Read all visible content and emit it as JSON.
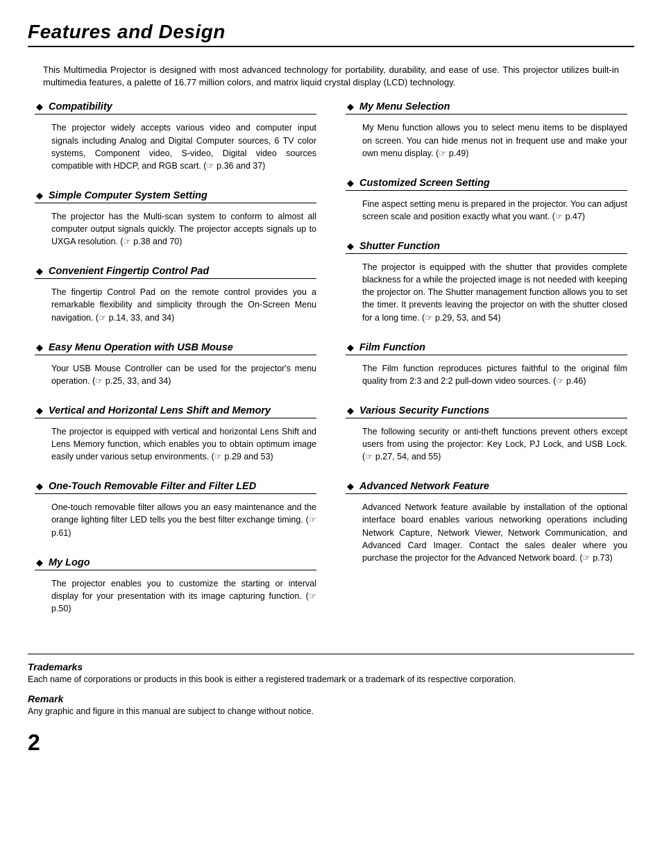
{
  "page": {
    "title": "Features and Design",
    "intro": "This Multimedia Projector is designed with most advanced technology for portability, durability, and ease of use. This projector utilizes built-in multimedia features, a palette of 16.77 million colors, and matrix liquid crystal display (LCD) technology.",
    "page_number": "2"
  },
  "left_features": [
    {
      "title": "Compatibility",
      "body": "The projector widely accepts various video and computer input signals including Analog and Digital Computer sources, 6 TV color systems, Component video, S-video, Digital video sources compatible with HDCP, and RGB scart. (☞ p.36 and 37)"
    },
    {
      "title": "Simple Computer System Setting",
      "body": "The projector has the Multi-scan system to conform to almost all computer output signals quickly. The projector accepts signals up to UXGA resolution. (☞ p.38 and 70)"
    },
    {
      "title": "Convenient Fingertip Control Pad",
      "body": "The fingertip Control Pad on the remote control provides you a remarkable flexibility and simplicity through the On-Screen Menu navigation. (☞ p.14, 33, and 34)"
    },
    {
      "title": "Easy Menu Operation with USB Mouse",
      "body": "Your USB Mouse Controller can be used for the projector's menu operation. (☞ p.25, 33, and 34)"
    },
    {
      "title": "Vertical and Horizontal Lens Shift and Memory",
      "body": "The projector is equipped with vertical and horizontal Lens Shift and Lens Memory function, which enables you to obtain optimum image easily under various setup environments. (☞ p.29 and 53)"
    },
    {
      "title": "One-Touch Removable Filter and Filter LED",
      "body": "One-touch removable filter allows you an easy maintenance and the orange lighting filter LED tells you the best filter exchange timing. (☞ p.61)"
    },
    {
      "title": "My Logo",
      "body": "The projector enables you to customize the starting or interval display for your presentation with its image capturing function. (☞ p.50)"
    }
  ],
  "right_features": [
    {
      "title": "My Menu Selection",
      "body": "My Menu function allows you to select menu items to be displayed on screen. You can hide menus not in frequent use and make your own menu display. (☞ p.49)"
    },
    {
      "title": "Customized Screen Setting",
      "body": "Fine aspect setting menu is prepared in the projector. You can adjust screen scale and position exactly what you want. (☞ p.47)"
    },
    {
      "title": "Shutter Function",
      "body": "The projector is equipped with the shutter that provides complete blackness for a while the projected image is not needed with keeping the projector on. The Shutter management function allows you to set the timer. It prevents leaving the projector on with the shutter closed for a long time. (☞ p.29, 53, and 54)"
    },
    {
      "title": "Film Function",
      "body": "The Film function reproduces pictures faithful to the original film quality from 2:3 and 2:2 pull-down video sources. (☞ p.46)"
    },
    {
      "title": "Various Security Functions",
      "body": "The following security or anti-theft functions prevent others except users from using the projector: Key Lock, PJ Lock, and USB Lock. (☞ p.27, 54, and 55)"
    },
    {
      "title": "Advanced Network Feature",
      "body": "Advanced Network feature available by installation of the optional interface board enables various networking operations including Network Capture, Network Viewer, Network Communication, and Advanced Card Imager. Contact the sales dealer where you purchase the projector for the Advanced Network board. (☞ p.73)"
    }
  ],
  "footnotes": [
    {
      "title": "Trademarks",
      "body": "Each name of corporations or products in this book is either a registered trademark or a trademark of its respective corporation."
    },
    {
      "title": "Remark",
      "body": "Any graphic and figure in this manual are subject to change without notice."
    }
  ],
  "styling": {
    "background_color": "#ffffff",
    "text_color": "#000000",
    "title_fontsize": 28,
    "feature_title_fontsize": 14.5,
    "body_fontsize": 12.5,
    "page_number_fontsize": 32,
    "diamond_glyph": "◆"
  }
}
